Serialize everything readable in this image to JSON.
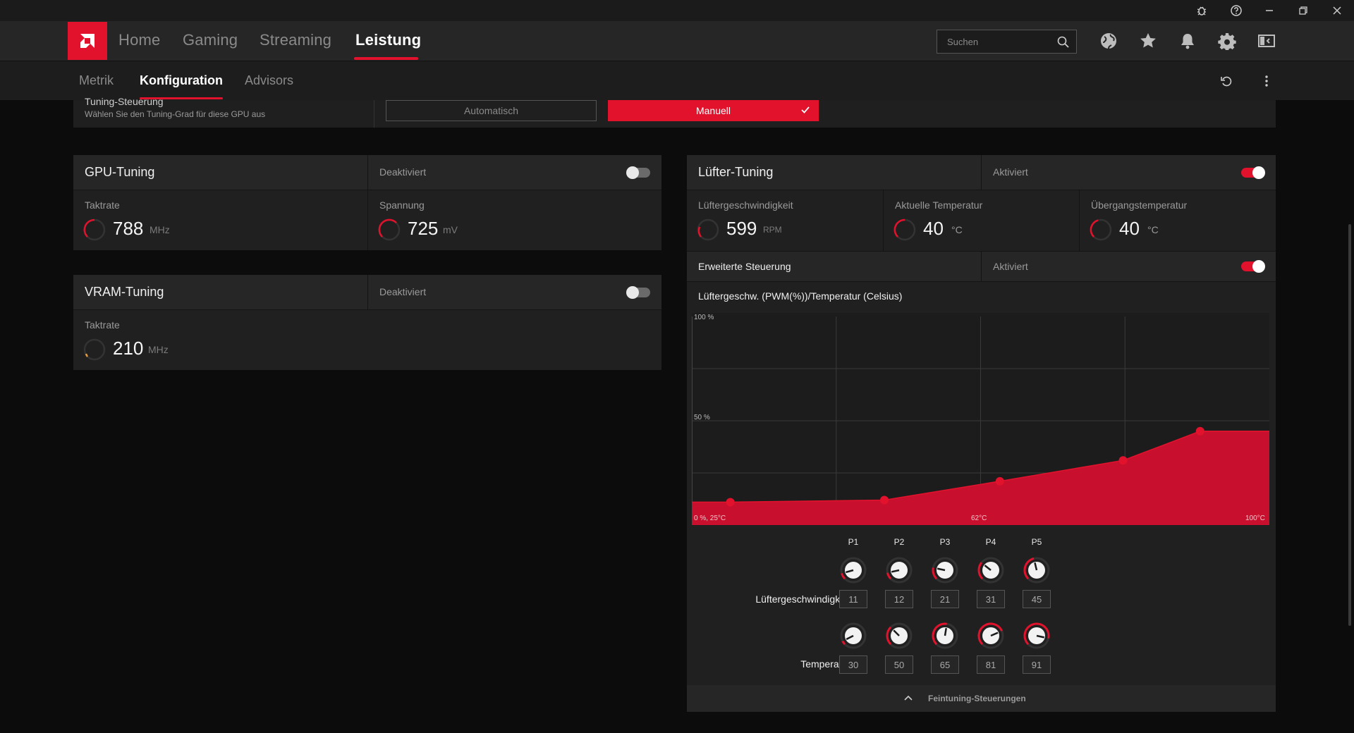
{
  "titlebar": {
    "icons": [
      "bug-icon",
      "help-icon",
      "minimize-icon",
      "restore-icon",
      "close-icon"
    ]
  },
  "nav": {
    "tabs": [
      "Home",
      "Gaming",
      "Streaming",
      "Leistung"
    ],
    "active_tab": "Leistung",
    "search_placeholder": "Suchen",
    "icons": [
      "globe-icon",
      "star-icon",
      "bell-icon",
      "gear-icon",
      "layout-icon"
    ]
  },
  "subnav": {
    "tabs": [
      "Metrik",
      "Konfiguration",
      "Advisors"
    ],
    "active_tab": "Konfiguration",
    "icons": [
      "reset-icon",
      "more-vertical-icon"
    ]
  },
  "tuning_control": {
    "title": "Tuning-Steuerung",
    "subtitle": "Wählen Sie den Tuning-Grad für diese GPU aus",
    "option_auto": "Automatisch",
    "option_manual": "Manuell",
    "selected": "Manuell"
  },
  "gpu_tuning": {
    "title": "GPU-Tuning",
    "status": "Deaktiviert",
    "enabled": false,
    "clock_label": "Taktrate",
    "clock_value": "788",
    "clock_unit": "MHz",
    "voltage_label": "Spannung",
    "voltage_value": "725",
    "voltage_unit": "mV"
  },
  "vram_tuning": {
    "title": "VRAM-Tuning",
    "status": "Deaktiviert",
    "enabled": false,
    "clock_label": "Taktrate",
    "clock_value": "210",
    "clock_unit": "MHz"
  },
  "fan_tuning": {
    "title": "Lüfter-Tuning",
    "status": "Aktiviert",
    "enabled": true,
    "fan_speed_label": "Lüftergeschwindigkeit",
    "fan_speed_value": "599",
    "fan_speed_unit": "RPM",
    "current_temp_label": "Aktuelle Temperatur",
    "current_temp_value": "40",
    "current_temp_unit": "°C",
    "junction_temp_label": "Übergangstemperatur",
    "junction_temp_value": "40",
    "junction_temp_unit": "°C",
    "advanced_label": "Erweiterte Steuerung",
    "advanced_status": "Aktiviert",
    "advanced_enabled": true,
    "curve_title": "Lüftergeschw. (PWM(%))/Temperatur (Celsius)",
    "y_top_label": "100 %",
    "y_mid_label": "50 %",
    "x_start_label": "0 %, 25°C",
    "x_mid_label": "62°C",
    "x_end_label": "100°C",
    "points": [
      "P1",
      "P2",
      "P3",
      "P4",
      "P5"
    ],
    "row_speed_label": "Lüftergeschwindigkeit",
    "row_temp_label": "Temperatur",
    "speed_values": [
      11,
      12,
      21,
      31,
      45
    ],
    "temp_values": [
      30,
      50,
      65,
      81,
      91
    ],
    "fine_tuning_label": "Feintuning-Steuerungen"
  },
  "chart_data": {
    "type": "area",
    "title": "Lüftergeschw. (PWM(%))/Temperatur (Celsius)",
    "xlabel": "°C",
    "ylabel": "%",
    "xlim": [
      25,
      100
    ],
    "ylim": [
      0,
      100
    ],
    "series": [
      {
        "name": "",
        "x": [
          30,
          50,
          65,
          81,
          91
        ],
        "y": [
          11,
          12,
          21,
          31,
          45
        ]
      }
    ],
    "accent_color": "#c8102e"
  },
  "colors": {
    "accent": "#e2122d",
    "background": "#0c0c0c",
    "panel": "#202020"
  }
}
